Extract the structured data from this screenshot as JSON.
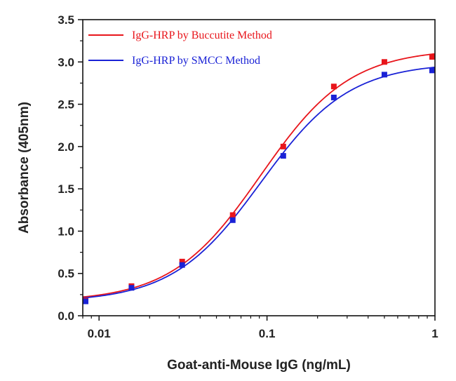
{
  "chart_data": {
    "type": "scatter",
    "xlabel": "Goat-anti-Mouse IgG (ng/mL)",
    "ylabel": "Absorbance (405nm)",
    "xscale": "log",
    "xlim": [
      0.008,
      1
    ],
    "ylim": [
      0,
      3.5
    ],
    "x_ticks": [
      {
        "value": 0.01,
        "label": "0.01"
      },
      {
        "value": 0.1,
        "label": "0.1"
      },
      {
        "value": 1,
        "label": "1"
      }
    ],
    "y_ticks": [
      {
        "value": 0,
        "label": "0.0"
      },
      {
        "value": 0.5,
        "label": "0.5"
      },
      {
        "value": 1.0,
        "label": "1.0"
      },
      {
        "value": 1.5,
        "label": "1.5"
      },
      {
        "value": 2.0,
        "label": "2.0"
      },
      {
        "value": 2.5,
        "label": "2.5"
      },
      {
        "value": 3.0,
        "label": "3.0"
      },
      {
        "value": 3.5,
        "label": "3.5"
      }
    ],
    "grid": false,
    "legend_position": "top-left",
    "series": [
      {
        "name": "IgG-HRP by Buccutite Method",
        "color": "#e8151b",
        "marker": "square",
        "x": [
          0.0078,
          0.0156,
          0.03125,
          0.0625,
          0.125,
          0.25,
          0.5,
          1.0
        ],
        "y": [
          0.18,
          0.35,
          0.64,
          1.19,
          2.0,
          2.71,
          3.0,
          3.06
        ],
        "fit": "4PL"
      },
      {
        "name": "IgG-HRP by SMCC Method",
        "color": "#1a22d6",
        "marker": "square",
        "x": [
          0.0078,
          0.0156,
          0.03125,
          0.0625,
          0.125,
          0.25,
          0.5,
          1.0
        ],
        "y": [
          0.17,
          0.33,
          0.6,
          1.13,
          1.89,
          2.58,
          2.85,
          2.9
        ],
        "fit": "4PL"
      }
    ]
  }
}
